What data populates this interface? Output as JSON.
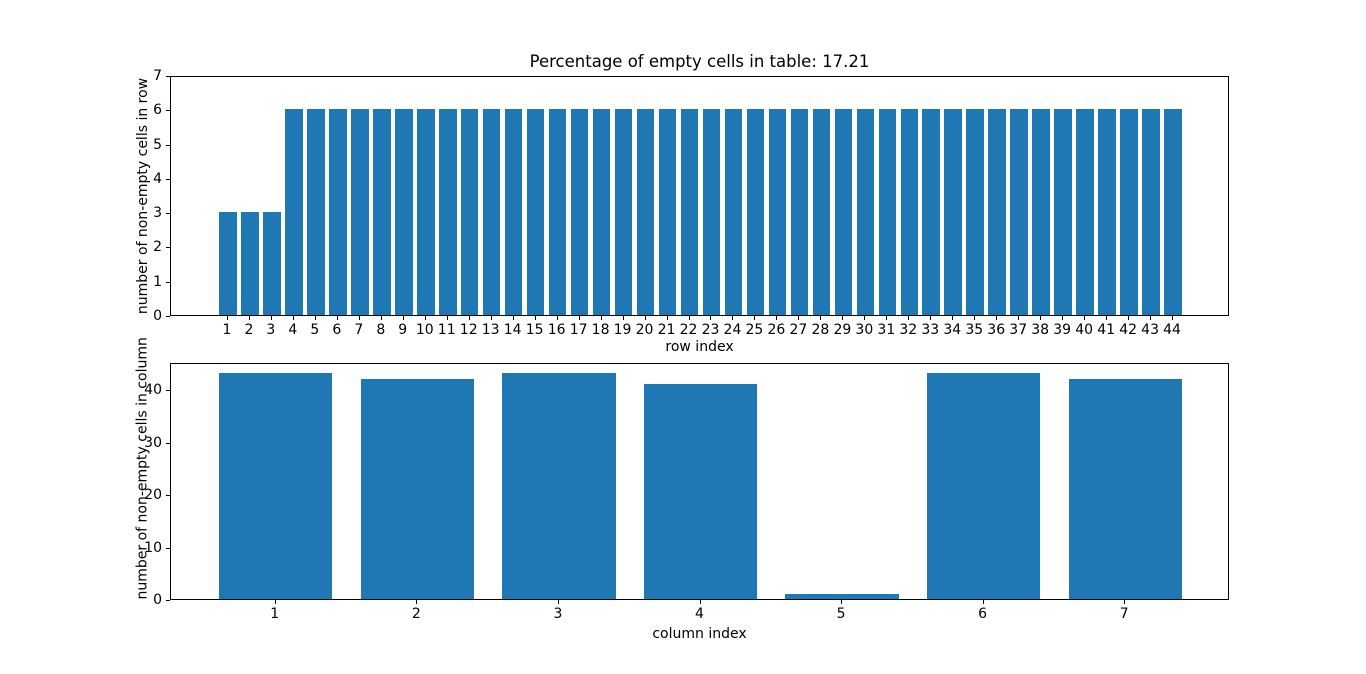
{
  "figure": {
    "background": "#ffffff",
    "bar_color": "#1f77b4",
    "axis_color": "#000000"
  },
  "chart_data": [
    {
      "type": "bar",
      "title": "Percentage of empty cells in table: 17.21",
      "xlabel": "row index",
      "ylabel": "number of non-empty cells in row",
      "categories": [
        "1",
        "2",
        "3",
        "4",
        "5",
        "6",
        "7",
        "8",
        "9",
        "10",
        "11",
        "12",
        "13",
        "14",
        "15",
        "16",
        "17",
        "18",
        "19",
        "20",
        "21",
        "22",
        "23",
        "24",
        "25",
        "26",
        "27",
        "28",
        "29",
        "30",
        "31",
        "32",
        "33",
        "34",
        "35",
        "36",
        "37",
        "38",
        "39",
        "40",
        "41",
        "42",
        "43",
        "44"
      ],
      "values": [
        3,
        3,
        3,
        6,
        6,
        6,
        6,
        6,
        6,
        6,
        6,
        6,
        6,
        6,
        6,
        6,
        6,
        6,
        6,
        6,
        6,
        6,
        6,
        6,
        6,
        6,
        6,
        6,
        6,
        6,
        6,
        6,
        6,
        6,
        6,
        6,
        6,
        6,
        6,
        6,
        6,
        6,
        6,
        6
      ],
      "ylim": [
        0,
        7
      ],
      "yticks": [
        0,
        1,
        2,
        3,
        4,
        5,
        6,
        7
      ],
      "grid": false,
      "legend": null
    },
    {
      "type": "bar",
      "title": "",
      "xlabel": "column index",
      "ylabel": "number of non-empty cells in column",
      "categories": [
        "1",
        "2",
        "3",
        "4",
        "5",
        "6",
        "7"
      ],
      "values": [
        43,
        42,
        43,
        41,
        1,
        43,
        42
      ],
      "ylim": [
        0,
        45.15
      ],
      "yticks": [
        0,
        10,
        20,
        30,
        40
      ],
      "grid": false,
      "legend": null
    }
  ]
}
